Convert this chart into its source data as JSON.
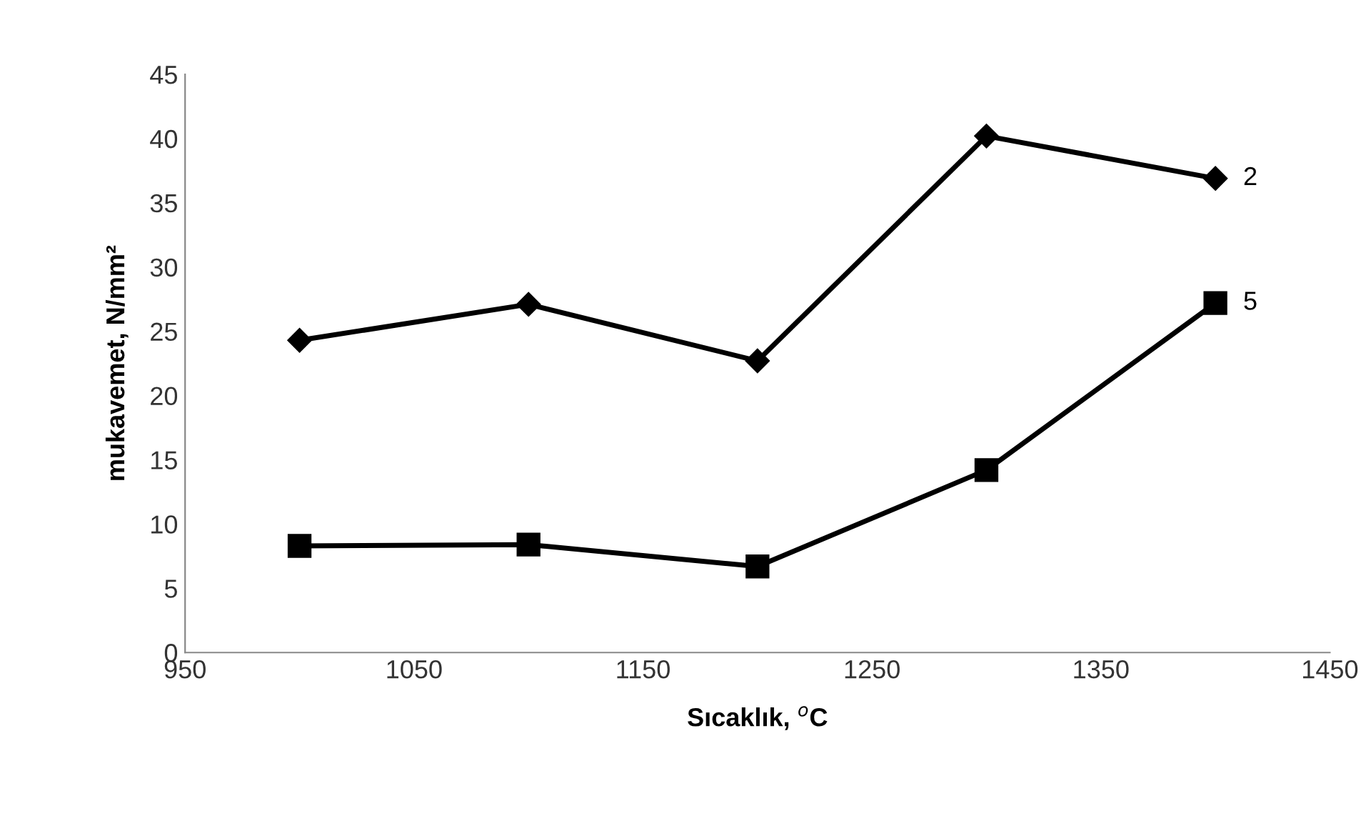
{
  "chart_data": {
    "type": "line",
    "xlabel": "Sıcaklık, $^{o}$C",
    "ylabel": "mukavemet, N/mm²",
    "x": [
      1000,
      1100,
      1200,
      1300,
      1400
    ],
    "series": [
      {
        "name": "2",
        "color": "#000000",
        "marker": "diamond",
        "values": [
          24.3,
          27.1,
          22.7,
          40.2,
          36.9
        ]
      },
      {
        "name": "5",
        "color": "#000000",
        "marker": "square",
        "values": [
          8.3,
          8.4,
          6.7,
          14.2,
          27.2
        ]
      }
    ],
    "xlim": [
      950,
      1450
    ],
    "xticks": [
      950,
      1050,
      1150,
      1250,
      1350,
      1450
    ],
    "ylim": [
      0,
      45
    ],
    "yticks": [
      0,
      5,
      10,
      15,
      20,
      25,
      30,
      35,
      40,
      45
    ],
    "grid": false,
    "legend": false,
    "line_style": "solid"
  }
}
